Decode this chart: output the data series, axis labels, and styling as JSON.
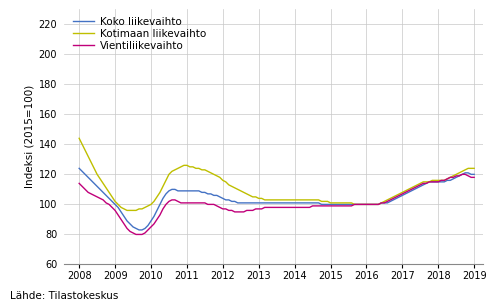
{
  "title": "",
  "ylabel": "Indeksi (2015=100)",
  "source_text": "Lähde: Tilastokeskus",
  "ylim": [
    60,
    230
  ],
  "yticks": [
    60,
    80,
    100,
    120,
    140,
    160,
    180,
    200,
    220
  ],
  "xlim_start": 2007.58,
  "xlim_end": 2019.25,
  "xtick_years": [
    2008,
    2009,
    2010,
    2011,
    2012,
    2013,
    2014,
    2015,
    2016,
    2017,
    2018,
    2019
  ],
  "legend_labels": [
    "Koko liikevaihto",
    "Kotimaan liikevaihto",
    "Vientiliikevaihto"
  ],
  "line_colors": [
    "#4472c4",
    "#bfbf00",
    "#c0007a"
  ],
  "background_color": "#ffffff",
  "grid_color": "#c8c8c8",
  "koko": {
    "x": [
      2008.0,
      2008.083,
      2008.167,
      2008.25,
      2008.333,
      2008.417,
      2008.5,
      2008.583,
      2008.667,
      2008.75,
      2008.833,
      2008.917,
      2009.0,
      2009.083,
      2009.167,
      2009.25,
      2009.333,
      2009.417,
      2009.5,
      2009.583,
      2009.667,
      2009.75,
      2009.833,
      2009.917,
      2010.0,
      2010.083,
      2010.167,
      2010.25,
      2010.333,
      2010.417,
      2010.5,
      2010.583,
      2010.667,
      2010.75,
      2010.833,
      2010.917,
      2011.0,
      2011.083,
      2011.167,
      2011.25,
      2011.333,
      2011.417,
      2011.5,
      2011.583,
      2011.667,
      2011.75,
      2011.833,
      2011.917,
      2012.0,
      2012.083,
      2012.167,
      2012.25,
      2012.333,
      2012.417,
      2012.5,
      2012.583,
      2012.667,
      2012.75,
      2012.833,
      2012.917,
      2013.0,
      2013.083,
      2013.167,
      2013.25,
      2013.333,
      2013.417,
      2013.5,
      2013.583,
      2013.667,
      2013.75,
      2013.833,
      2013.917,
      2014.0,
      2014.083,
      2014.167,
      2014.25,
      2014.333,
      2014.417,
      2014.5,
      2014.583,
      2014.667,
      2014.75,
      2014.833,
      2014.917,
      2015.0,
      2015.083,
      2015.167,
      2015.25,
      2015.333,
      2015.417,
      2015.5,
      2015.583,
      2015.667,
      2015.75,
      2015.833,
      2015.917,
      2016.0,
      2016.083,
      2016.167,
      2016.25,
      2016.333,
      2016.417,
      2016.5,
      2016.583,
      2016.667,
      2016.75,
      2016.833,
      2016.917,
      2017.0,
      2017.083,
      2017.167,
      2017.25,
      2017.333,
      2017.417,
      2017.5,
      2017.583,
      2017.667,
      2017.75,
      2017.833,
      2017.917,
      2018.0,
      2018.083,
      2018.167,
      2018.25,
      2018.333,
      2018.417,
      2018.5,
      2018.583,
      2018.667,
      2018.75,
      2018.833,
      2018.917,
      2019.0
    ],
    "y": [
      124,
      122,
      120,
      118,
      116,
      114,
      112,
      110,
      108,
      106,
      104,
      102,
      100,
      98,
      95,
      92,
      89,
      87,
      85,
      84,
      83,
      83,
      84,
      86,
      89,
      92,
      96,
      100,
      104,
      107,
      109,
      110,
      110,
      109,
      109,
      109,
      109,
      109,
      109,
      109,
      109,
      108,
      108,
      107,
      107,
      106,
      106,
      105,
      104,
      103,
      103,
      102,
      102,
      101,
      101,
      101,
      101,
      101,
      101,
      101,
      101,
      101,
      101,
      101,
      101,
      101,
      101,
      101,
      101,
      101,
      101,
      101,
      101,
      101,
      101,
      101,
      101,
      101,
      101,
      101,
      101,
      100,
      100,
      100,
      100,
      100,
      100,
      100,
      100,
      100,
      100,
      100,
      100,
      100,
      100,
      100,
      100,
      100,
      100,
      100,
      100,
      101,
      101,
      101,
      102,
      103,
      104,
      105,
      106,
      107,
      108,
      109,
      110,
      111,
      112,
      113,
      114,
      115,
      115,
      115,
      115,
      115,
      115,
      116,
      116,
      117,
      118,
      119,
      120,
      121,
      121,
      120,
      120
    ]
  },
  "kotimaan": {
    "x": [
      2008.0,
      2008.083,
      2008.167,
      2008.25,
      2008.333,
      2008.417,
      2008.5,
      2008.583,
      2008.667,
      2008.75,
      2008.833,
      2008.917,
      2009.0,
      2009.083,
      2009.167,
      2009.25,
      2009.333,
      2009.417,
      2009.5,
      2009.583,
      2009.667,
      2009.75,
      2009.833,
      2009.917,
      2010.0,
      2010.083,
      2010.167,
      2010.25,
      2010.333,
      2010.417,
      2010.5,
      2010.583,
      2010.667,
      2010.75,
      2010.833,
      2010.917,
      2011.0,
      2011.083,
      2011.167,
      2011.25,
      2011.333,
      2011.417,
      2011.5,
      2011.583,
      2011.667,
      2011.75,
      2011.833,
      2011.917,
      2012.0,
      2012.083,
      2012.167,
      2012.25,
      2012.333,
      2012.417,
      2012.5,
      2012.583,
      2012.667,
      2012.75,
      2012.833,
      2012.917,
      2013.0,
      2013.083,
      2013.167,
      2013.25,
      2013.333,
      2013.417,
      2013.5,
      2013.583,
      2013.667,
      2013.75,
      2013.833,
      2013.917,
      2014.0,
      2014.083,
      2014.167,
      2014.25,
      2014.333,
      2014.417,
      2014.5,
      2014.583,
      2014.667,
      2014.75,
      2014.833,
      2014.917,
      2015.0,
      2015.083,
      2015.167,
      2015.25,
      2015.333,
      2015.417,
      2015.5,
      2015.583,
      2015.667,
      2015.75,
      2015.833,
      2015.917,
      2016.0,
      2016.083,
      2016.167,
      2016.25,
      2016.333,
      2016.417,
      2016.5,
      2016.583,
      2016.667,
      2016.75,
      2016.833,
      2016.917,
      2017.0,
      2017.083,
      2017.167,
      2017.25,
      2017.333,
      2017.417,
      2017.5,
      2017.583,
      2017.667,
      2017.75,
      2017.833,
      2017.917,
      2018.0,
      2018.083,
      2018.167,
      2018.25,
      2018.333,
      2018.417,
      2018.5,
      2018.583,
      2018.667,
      2018.75,
      2018.833,
      2018.917,
      2019.0
    ],
    "y": [
      144,
      140,
      136,
      132,
      128,
      124,
      120,
      117,
      114,
      111,
      108,
      105,
      102,
      100,
      98,
      97,
      96,
      96,
      96,
      96,
      97,
      97,
      98,
      99,
      100,
      102,
      105,
      108,
      112,
      116,
      120,
      122,
      123,
      124,
      125,
      126,
      126,
      125,
      125,
      124,
      124,
      123,
      123,
      122,
      121,
      120,
      119,
      118,
      116,
      115,
      113,
      112,
      111,
      110,
      109,
      108,
      107,
      106,
      105,
      105,
      104,
      104,
      103,
      103,
      103,
      103,
      103,
      103,
      103,
      103,
      103,
      103,
      103,
      103,
      103,
      103,
      103,
      103,
      103,
      103,
      103,
      102,
      102,
      102,
      101,
      101,
      101,
      101,
      101,
      101,
      101,
      101,
      100,
      100,
      100,
      100,
      100,
      100,
      100,
      100,
      100,
      101,
      102,
      103,
      104,
      105,
      106,
      107,
      108,
      109,
      110,
      111,
      112,
      113,
      114,
      115,
      115,
      115,
      116,
      116,
      116,
      116,
      116,
      117,
      118,
      119,
      120,
      121,
      122,
      123,
      124,
      124,
      124
    ]
  },
  "vienti": {
    "x": [
      2008.0,
      2008.083,
      2008.167,
      2008.25,
      2008.333,
      2008.417,
      2008.5,
      2008.583,
      2008.667,
      2008.75,
      2008.833,
      2008.917,
      2009.0,
      2009.083,
      2009.167,
      2009.25,
      2009.333,
      2009.417,
      2009.5,
      2009.583,
      2009.667,
      2009.75,
      2009.833,
      2009.917,
      2010.0,
      2010.083,
      2010.167,
      2010.25,
      2010.333,
      2010.417,
      2010.5,
      2010.583,
      2010.667,
      2010.75,
      2010.833,
      2010.917,
      2011.0,
      2011.083,
      2011.167,
      2011.25,
      2011.333,
      2011.417,
      2011.5,
      2011.583,
      2011.667,
      2011.75,
      2011.833,
      2011.917,
      2012.0,
      2012.083,
      2012.167,
      2012.25,
      2012.333,
      2012.417,
      2012.5,
      2012.583,
      2012.667,
      2012.75,
      2012.833,
      2012.917,
      2013.0,
      2013.083,
      2013.167,
      2013.25,
      2013.333,
      2013.417,
      2013.5,
      2013.583,
      2013.667,
      2013.75,
      2013.833,
      2013.917,
      2014.0,
      2014.083,
      2014.167,
      2014.25,
      2014.333,
      2014.417,
      2014.5,
      2014.583,
      2014.667,
      2014.75,
      2014.833,
      2014.917,
      2015.0,
      2015.083,
      2015.167,
      2015.25,
      2015.333,
      2015.417,
      2015.5,
      2015.583,
      2015.667,
      2015.75,
      2015.833,
      2015.917,
      2016.0,
      2016.083,
      2016.167,
      2016.25,
      2016.333,
      2016.417,
      2016.5,
      2016.583,
      2016.667,
      2016.75,
      2016.833,
      2016.917,
      2017.0,
      2017.083,
      2017.167,
      2017.25,
      2017.333,
      2017.417,
      2017.5,
      2017.583,
      2017.667,
      2017.75,
      2017.833,
      2017.917,
      2018.0,
      2018.083,
      2018.167,
      2018.25,
      2018.333,
      2018.417,
      2018.5,
      2018.583,
      2018.667,
      2018.75,
      2018.833,
      2018.917,
      2019.0
    ],
    "y": [
      114,
      112,
      110,
      108,
      107,
      106,
      105,
      104,
      103,
      101,
      100,
      98,
      96,
      93,
      90,
      87,
      84,
      82,
      81,
      80,
      80,
      80,
      81,
      83,
      85,
      87,
      90,
      93,
      97,
      100,
      102,
      103,
      103,
      102,
      101,
      101,
      101,
      101,
      101,
      101,
      101,
      101,
      101,
      100,
      100,
      100,
      99,
      98,
      97,
      97,
      96,
      96,
      95,
      95,
      95,
      95,
      96,
      96,
      96,
      97,
      97,
      97,
      98,
      98,
      98,
      98,
      98,
      98,
      98,
      98,
      98,
      98,
      98,
      98,
      98,
      98,
      98,
      98,
      99,
      99,
      99,
      99,
      99,
      99,
      99,
      99,
      99,
      99,
      99,
      99,
      99,
      99,
      100,
      100,
      100,
      100,
      100,
      100,
      100,
      100,
      100,
      101,
      101,
      102,
      103,
      104,
      105,
      106,
      107,
      108,
      109,
      110,
      111,
      112,
      113,
      114,
      114,
      115,
      115,
      115,
      115,
      116,
      116,
      117,
      118,
      118,
      119,
      119,
      120,
      120,
      119,
      118,
      118
    ]
  }
}
